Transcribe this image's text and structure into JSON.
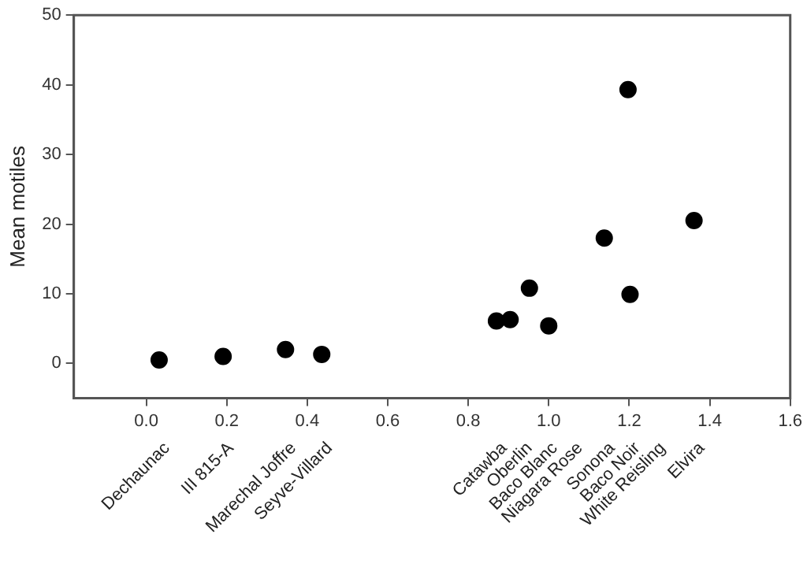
{
  "chart_data": {
    "type": "scatter",
    "ylabel": "Mean motiles",
    "marker": "circle",
    "grid": false,
    "legend": false,
    "xlim": [
      -0.18,
      1.6
    ],
    "ylim": [
      -5,
      50
    ],
    "xticks": [
      {
        "value": 0,
        "label": "0.0"
      },
      {
        "value": 0.2,
        "label": "0.2"
      },
      {
        "value": 0.4,
        "label": "0.4"
      },
      {
        "value": 0.6,
        "label": "0.6"
      },
      {
        "value": 0.8,
        "label": "0.8"
      },
      {
        "value": 1,
        "label": "1.0"
      },
      {
        "value": 1.2,
        "label": "1.2"
      },
      {
        "value": 1.4,
        "label": "1.4"
      },
      {
        "value": 1.6,
        "label": "1.6"
      }
    ],
    "yticks": [
      0,
      10,
      20,
      30,
      40,
      50
    ],
    "x": [
      0.032,
      0.191,
      0.346,
      0.436,
      0.87,
      0.904,
      0.952,
      1.0,
      1.138,
      1.197,
      1.202,
      1.361
    ],
    "series": [
      {
        "color": "#000000",
        "values": [
          0.5,
          1.0,
          2.0,
          1.3,
          6.1,
          6.3,
          10.8,
          5.4,
          18.0,
          39.3,
          9.9,
          20.5
        ]
      }
    ],
    "annotations": [
      "Dechaunac",
      "III 815-A",
      "Marechal Joffre",
      "Seyve-Villard",
      "Catawba",
      "Oberlin",
      "Baco Blanc",
      "Niagara Rose",
      "Sonona",
      "Baco Noir",
      "White Reisling",
      "Elvira"
    ]
  }
}
